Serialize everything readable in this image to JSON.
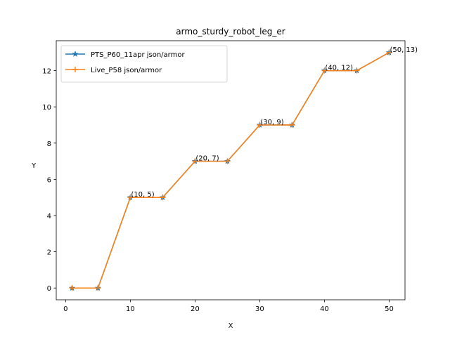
{
  "chart_data": {
    "type": "line",
    "title": "armo_sturdy_robot_leg_er",
    "xlabel": "X",
    "ylabel": "Y",
    "xlim": [
      -1.45,
      52.45
    ],
    "ylim": [
      -0.65,
      13.65
    ],
    "xticks": [
      0,
      10,
      20,
      30,
      40,
      50
    ],
    "yticks": [
      0,
      2,
      4,
      6,
      8,
      10,
      12
    ],
    "grid": false,
    "legend": "upper-left",
    "series": [
      {
        "name": "PTS_P60_11apr json/armor",
        "color": "#1f77b4",
        "marker": "star",
        "x": [
          1,
          5,
          10,
          15,
          20,
          25,
          30,
          35,
          40,
          45,
          50
        ],
        "y": [
          0,
          0,
          5,
          5,
          7,
          7,
          9,
          9,
          12,
          12,
          13
        ]
      },
      {
        "name": "Live_P58 json/armor",
        "color": "#ff7f0e",
        "marker": "plus",
        "x": [
          1,
          5,
          10,
          15,
          20,
          25,
          30,
          35,
          40,
          45,
          50
        ],
        "y": [
          0,
          0,
          5,
          5,
          7,
          7,
          9,
          9,
          12,
          12,
          13
        ]
      }
    ],
    "annotations": [
      {
        "x": 10,
        "y": 5,
        "text": "(10, 5)"
      },
      {
        "x": 20,
        "y": 7,
        "text": "(20, 7)"
      },
      {
        "x": 30,
        "y": 9,
        "text": "(30, 9)"
      },
      {
        "x": 40,
        "y": 12,
        "text": "(40, 12)"
      },
      {
        "x": 50,
        "y": 13,
        "text": "(50, 13)"
      }
    ]
  }
}
